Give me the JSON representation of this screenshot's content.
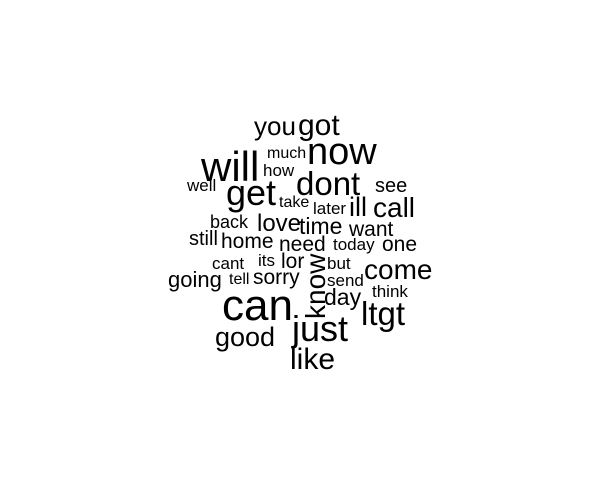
{
  "wordcloud": {
    "words": [
      {
        "text": "you",
        "freq": 4
      },
      {
        "text": "got",
        "freq": 5
      },
      {
        "text": "will",
        "freq": 7
      },
      {
        "text": "much",
        "freq": 2
      },
      {
        "text": "now",
        "freq": 7
      },
      {
        "text": "how",
        "freq": 2
      },
      {
        "text": "get",
        "freq": 6
      },
      {
        "text": "dont",
        "freq": 6
      },
      {
        "text": "well",
        "freq": 2
      },
      {
        "text": "see",
        "freq": 3
      },
      {
        "text": "take",
        "freq": 2
      },
      {
        "text": "later",
        "freq": 2
      },
      {
        "text": "ill",
        "freq": 4
      },
      {
        "text": "call",
        "freq": 5
      },
      {
        "text": "back",
        "freq": 3
      },
      {
        "text": "love",
        "freq": 4
      },
      {
        "text": "time",
        "freq": 4
      },
      {
        "text": "want",
        "freq": 3
      },
      {
        "text": "still",
        "freq": 3
      },
      {
        "text": "home",
        "freq": 3
      },
      {
        "text": "need",
        "freq": 3
      },
      {
        "text": "today",
        "freq": 2
      },
      {
        "text": "one",
        "freq": 3
      },
      {
        "text": "cant",
        "freq": 2
      },
      {
        "text": "its",
        "freq": 2
      },
      {
        "text": "lor",
        "freq": 3
      },
      {
        "text": "know",
        "freq": 5
      },
      {
        "text": "but",
        "freq": 2
      },
      {
        "text": "come",
        "freq": 5
      },
      {
        "text": "going",
        "freq": 3
      },
      {
        "text": "tell",
        "freq": 2
      },
      {
        "text": "sorry",
        "freq": 3
      },
      {
        "text": "send",
        "freq": 2
      },
      {
        "text": "think",
        "freq": 2
      },
      {
        "text": "can",
        "freq": 9
      },
      {
        "text": "day",
        "freq": 4
      },
      {
        "text": "ltgt",
        "freq": 6
      },
      {
        "text": "just",
        "freq": 7
      },
      {
        "text": "good",
        "freq": 5
      },
      {
        "text": "like",
        "freq": 5
      }
    ]
  }
}
